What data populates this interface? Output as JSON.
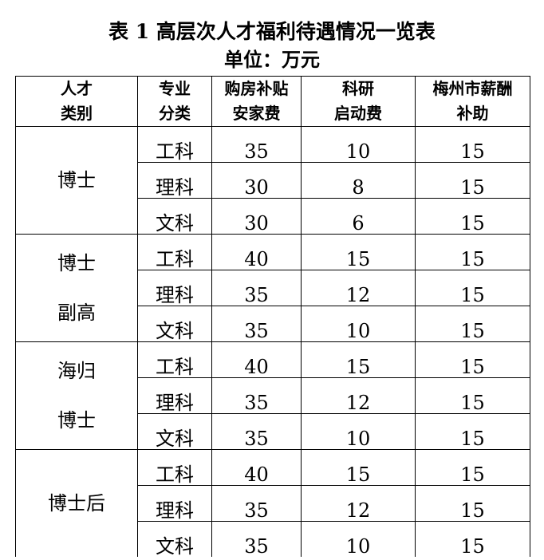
{
  "title": "表 1 高层次人才福利待遇情况一览表",
  "unit": "单位：万元",
  "headers": [
    [
      "人才",
      "类别"
    ],
    [
      "专业",
      "分类"
    ],
    [
      "购房补贴",
      "安家费"
    ],
    [
      "科研",
      "启动费"
    ],
    [
      "梅州市薪酬",
      "补助"
    ]
  ],
  "groups": [
    {
      "category": [
        "博士"
      ],
      "rows": [
        {
          "major": "工科",
          "housing": "35",
          "research": "10",
          "salary": "15"
        },
        {
          "major": "理科",
          "housing": "30",
          "research": "8",
          "salary": "15"
        },
        {
          "major": "文科",
          "housing": "30",
          "research": "6",
          "salary": "15"
        }
      ]
    },
    {
      "category": [
        "博士",
        "副高"
      ],
      "rows": [
        {
          "major": "工科",
          "housing": "40",
          "research": "15",
          "salary": "15"
        },
        {
          "major": "理科",
          "housing": "35",
          "research": "12",
          "salary": "15"
        },
        {
          "major": "文科",
          "housing": "35",
          "research": "10",
          "salary": "15"
        }
      ]
    },
    {
      "category": [
        "海归",
        "博士"
      ],
      "rows": [
        {
          "major": "工科",
          "housing": "40",
          "research": "15",
          "salary": "15"
        },
        {
          "major": "理科",
          "housing": "35",
          "research": "12",
          "salary": "15"
        },
        {
          "major": "文科",
          "housing": "35",
          "research": "10",
          "salary": "15"
        }
      ]
    },
    {
      "category": [
        "博士后"
      ],
      "rows": [
        {
          "major": "工科",
          "housing": "40",
          "research": "15",
          "salary": "15"
        },
        {
          "major": "理科",
          "housing": "35",
          "research": "12",
          "salary": "15"
        },
        {
          "major": "文科",
          "housing": "35",
          "research": "10",
          "salary": "15"
        }
      ]
    }
  ]
}
